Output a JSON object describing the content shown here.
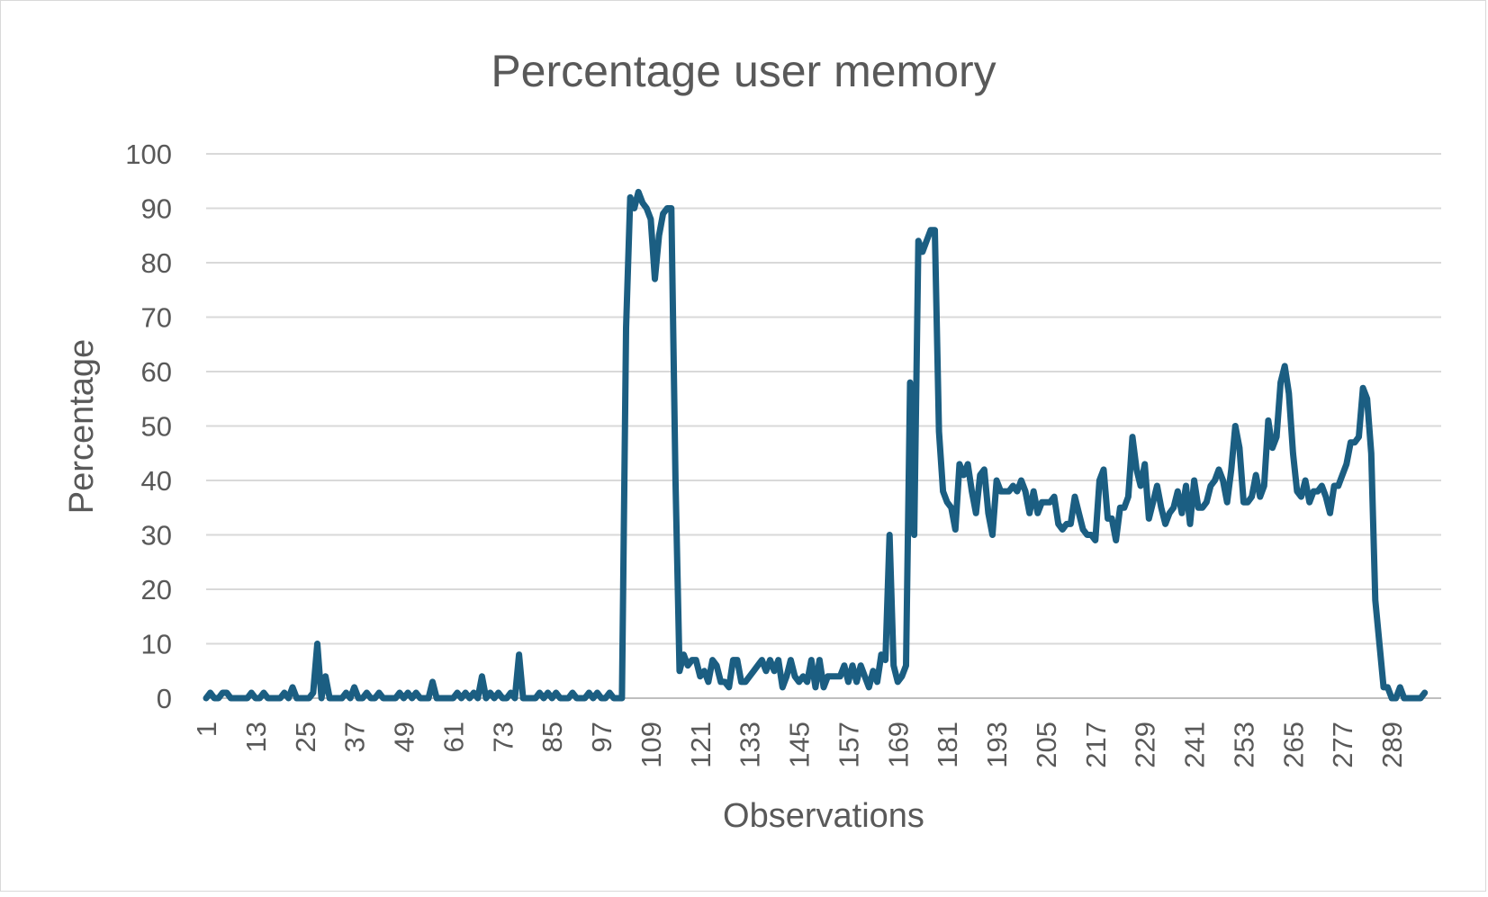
{
  "chart_data": {
    "type": "line",
    "title": "Percentage user memory",
    "xlabel": "Observations",
    "ylabel": "Percentage",
    "ylim": [
      0,
      100
    ],
    "yticks": [
      0,
      10,
      20,
      30,
      40,
      50,
      60,
      70,
      80,
      90,
      100
    ],
    "xticks": [
      1,
      13,
      25,
      37,
      49,
      61,
      73,
      85,
      97,
      109,
      121,
      133,
      145,
      157,
      169,
      181,
      193,
      205,
      217,
      229,
      241,
      253,
      265,
      277,
      289
    ],
    "xlim": [
      1,
      301
    ],
    "grid": true,
    "legend": "none",
    "colors": {
      "line": "#1b5e82",
      "grid": "#d9d9d9",
      "text": "#595959"
    },
    "series": [
      {
        "points": [
          [
            1,
            0
          ],
          [
            2,
            1
          ],
          [
            3,
            0
          ],
          [
            4,
            0
          ],
          [
            5,
            1
          ],
          [
            6,
            1
          ],
          [
            7,
            0
          ],
          [
            8,
            0
          ],
          [
            9,
            0
          ],
          [
            10,
            0
          ],
          [
            11,
            0
          ],
          [
            12,
            1
          ],
          [
            13,
            0
          ],
          [
            14,
            0
          ],
          [
            15,
            1
          ],
          [
            16,
            0
          ],
          [
            17,
            0
          ],
          [
            18,
            0
          ],
          [
            19,
            0
          ],
          [
            20,
            1
          ],
          [
            21,
            0
          ],
          [
            22,
            2
          ],
          [
            23,
            0
          ],
          [
            24,
            0
          ],
          [
            25,
            0
          ],
          [
            26,
            0
          ],
          [
            27,
            1
          ],
          [
            28,
            10
          ],
          [
            29,
            0
          ],
          [
            30,
            4
          ],
          [
            31,
            0
          ],
          [
            32,
            0
          ],
          [
            33,
            0
          ],
          [
            34,
            0
          ],
          [
            35,
            1
          ],
          [
            36,
            0
          ],
          [
            37,
            2
          ],
          [
            38,
            0
          ],
          [
            39,
            0
          ],
          [
            40,
            1
          ],
          [
            41,
            0
          ],
          [
            42,
            0
          ],
          [
            43,
            1
          ],
          [
            44,
            0
          ],
          [
            45,
            0
          ],
          [
            46,
            0
          ],
          [
            47,
            0
          ],
          [
            48,
            1
          ],
          [
            49,
            0
          ],
          [
            50,
            1
          ],
          [
            51,
            0
          ],
          [
            52,
            1
          ],
          [
            53,
            0
          ],
          [
            54,
            0
          ],
          [
            55,
            0
          ],
          [
            56,
            3
          ],
          [
            57,
            0
          ],
          [
            58,
            0
          ],
          [
            59,
            0
          ],
          [
            60,
            0
          ],
          [
            61,
            0
          ],
          [
            62,
            1
          ],
          [
            63,
            0
          ],
          [
            64,
            1
          ],
          [
            65,
            0
          ],
          [
            66,
            1
          ],
          [
            67,
            0
          ],
          [
            68,
            4
          ],
          [
            69,
            0
          ],
          [
            70,
            1
          ],
          [
            71,
            0
          ],
          [
            72,
            1
          ],
          [
            73,
            0
          ],
          [
            74,
            0
          ],
          [
            75,
            1
          ],
          [
            76,
            0
          ],
          [
            77,
            8
          ],
          [
            78,
            0
          ],
          [
            79,
            0
          ],
          [
            80,
            0
          ],
          [
            81,
            0
          ],
          [
            82,
            1
          ],
          [
            83,
            0
          ],
          [
            84,
            1
          ],
          [
            85,
            0
          ],
          [
            86,
            1
          ],
          [
            87,
            0
          ],
          [
            88,
            0
          ],
          [
            89,
            0
          ],
          [
            90,
            1
          ],
          [
            91,
            0
          ],
          [
            92,
            0
          ],
          [
            93,
            0
          ],
          [
            94,
            1
          ],
          [
            95,
            0
          ],
          [
            96,
            1
          ],
          [
            97,
            0
          ],
          [
            98,
            0
          ],
          [
            99,
            1
          ],
          [
            100,
            0
          ],
          [
            101,
            0
          ],
          [
            102,
            0
          ],
          [
            103,
            68
          ],
          [
            104,
            92
          ],
          [
            105,
            90
          ],
          [
            106,
            93
          ],
          [
            107,
            91
          ],
          [
            108,
            90
          ],
          [
            109,
            88
          ],
          [
            110,
            77
          ],
          [
            111,
            85
          ],
          [
            112,
            89
          ],
          [
            113,
            90
          ],
          [
            114,
            90
          ],
          [
            115,
            40
          ],
          [
            116,
            5
          ],
          [
            117,
            8
          ],
          [
            118,
            6
          ],
          [
            119,
            7
          ],
          [
            120,
            7
          ],
          [
            121,
            4
          ],
          [
            122,
            5
          ],
          [
            123,
            3
          ],
          [
            124,
            7
          ],
          [
            125,
            6
          ],
          [
            126,
            3
          ],
          [
            127,
            3
          ],
          [
            128,
            2
          ],
          [
            129,
            7
          ],
          [
            130,
            7
          ],
          [
            131,
            3
          ],
          [
            132,
            3
          ],
          [
            133,
            4
          ],
          [
            134,
            5
          ],
          [
            135,
            6
          ],
          [
            136,
            7
          ],
          [
            137,
            5
          ],
          [
            138,
            7
          ],
          [
            139,
            5
          ],
          [
            140,
            7
          ],
          [
            141,
            2
          ],
          [
            142,
            4
          ],
          [
            143,
            7
          ],
          [
            144,
            4
          ],
          [
            145,
            3
          ],
          [
            146,
            4
          ],
          [
            147,
            3
          ],
          [
            148,
            7
          ],
          [
            149,
            2
          ],
          [
            150,
            7
          ],
          [
            151,
            2
          ],
          [
            152,
            4
          ],
          [
            153,
            4
          ],
          [
            154,
            4
          ],
          [
            155,
            4
          ],
          [
            156,
            6
          ],
          [
            157,
            3
          ],
          [
            158,
            6
          ],
          [
            159,
            3
          ],
          [
            160,
            6
          ],
          [
            161,
            4
          ],
          [
            162,
            2
          ],
          [
            163,
            5
          ],
          [
            164,
            3
          ],
          [
            165,
            8
          ],
          [
            166,
            7
          ],
          [
            167,
            30
          ],
          [
            168,
            6
          ],
          [
            169,
            3
          ],
          [
            170,
            4
          ],
          [
            171,
            6
          ],
          [
            172,
            58
          ],
          [
            173,
            30
          ],
          [
            174,
            84
          ],
          [
            175,
            82
          ],
          [
            176,
            84
          ],
          [
            177,
            86
          ],
          [
            178,
            86
          ],
          [
            179,
            49
          ],
          [
            180,
            38
          ],
          [
            181,
            36
          ],
          [
            182,
            35
          ],
          [
            183,
            31
          ],
          [
            184,
            43
          ],
          [
            185,
            41
          ],
          [
            186,
            43
          ],
          [
            187,
            38
          ],
          [
            188,
            34
          ],
          [
            189,
            41
          ],
          [
            190,
            42
          ],
          [
            191,
            34
          ],
          [
            192,
            30
          ],
          [
            193,
            40
          ],
          [
            194,
            38
          ],
          [
            195,
            38
          ],
          [
            196,
            38
          ],
          [
            197,
            39
          ],
          [
            198,
            38
          ],
          [
            199,
            40
          ],
          [
            200,
            38
          ],
          [
            201,
            34
          ],
          [
            202,
            38
          ],
          [
            203,
            34
          ],
          [
            204,
            36
          ],
          [
            205,
            36
          ],
          [
            206,
            36
          ],
          [
            207,
            37
          ],
          [
            208,
            32
          ],
          [
            209,
            31
          ],
          [
            210,
            32
          ],
          [
            211,
            32
          ],
          [
            212,
            37
          ],
          [
            213,
            34
          ],
          [
            214,
            31
          ],
          [
            215,
            30
          ],
          [
            216,
            30
          ],
          [
            217,
            29
          ],
          [
            218,
            40
          ],
          [
            219,
            42
          ],
          [
            220,
            33
          ],
          [
            221,
            33
          ],
          [
            222,
            29
          ],
          [
            223,
            35
          ],
          [
            224,
            35
          ],
          [
            225,
            37
          ],
          [
            226,
            48
          ],
          [
            227,
            42
          ],
          [
            228,
            39
          ],
          [
            229,
            43
          ],
          [
            230,
            33
          ],
          [
            231,
            36
          ],
          [
            232,
            39
          ],
          [
            233,
            35
          ],
          [
            234,
            32
          ],
          [
            235,
            34
          ],
          [
            236,
            35
          ],
          [
            237,
            38
          ],
          [
            238,
            34
          ],
          [
            239,
            39
          ],
          [
            240,
            32
          ],
          [
            241,
            40
          ],
          [
            242,
            35
          ],
          [
            243,
            35
          ],
          [
            244,
            36
          ],
          [
            245,
            39
          ],
          [
            246,
            40
          ],
          [
            247,
            42
          ],
          [
            248,
            40
          ],
          [
            249,
            36
          ],
          [
            250,
            42
          ],
          [
            251,
            50
          ],
          [
            252,
            46
          ],
          [
            253,
            36
          ],
          [
            254,
            36
          ],
          [
            255,
            37
          ],
          [
            256,
            41
          ],
          [
            257,
            37
          ],
          [
            258,
            39
          ],
          [
            259,
            51
          ],
          [
            260,
            46
          ],
          [
            261,
            48
          ],
          [
            262,
            58
          ],
          [
            263,
            61
          ],
          [
            264,
            56
          ],
          [
            265,
            45
          ],
          [
            266,
            38
          ],
          [
            267,
            37
          ],
          [
            268,
            40
          ],
          [
            269,
            36
          ],
          [
            270,
            38
          ],
          [
            271,
            38
          ],
          [
            272,
            39
          ],
          [
            273,
            37
          ],
          [
            274,
            34
          ],
          [
            275,
            39
          ],
          [
            276,
            39
          ],
          [
            277,
            41
          ],
          [
            278,
            43
          ],
          [
            279,
            47
          ],
          [
            280,
            47
          ],
          [
            281,
            48
          ],
          [
            282,
            57
          ],
          [
            283,
            55
          ],
          [
            284,
            45
          ],
          [
            285,
            18
          ],
          [
            286,
            10
          ],
          [
            287,
            2
          ],
          [
            288,
            2
          ],
          [
            289,
            0
          ],
          [
            290,
            0
          ],
          [
            291,
            2
          ],
          [
            292,
            0
          ],
          [
            293,
            0
          ],
          [
            294,
            0
          ],
          [
            295,
            0
          ],
          [
            296,
            0
          ],
          [
            297,
            1
          ]
        ]
      }
    ]
  }
}
